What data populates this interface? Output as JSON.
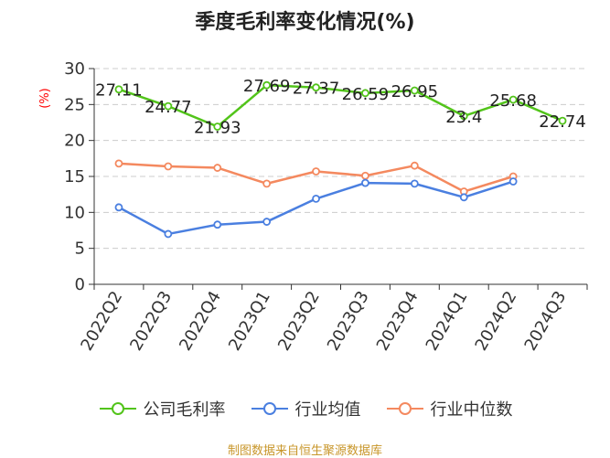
{
  "chart_data": {
    "type": "line",
    "title": "季度毛利率变化情况(%)",
    "ylabel": "(%)",
    "ylim": [
      0,
      30
    ],
    "yticks": [
      0,
      5,
      10,
      15,
      20,
      25,
      30
    ],
    "grid": true,
    "legend_position": "bottom",
    "categories": [
      "2022Q2",
      "2022Q3",
      "2022Q4",
      "2023Q1",
      "2023Q2",
      "2023Q3",
      "2023Q4",
      "2024Q1",
      "2024Q2",
      "2024Q3"
    ],
    "series": [
      {
        "name": "公司毛利率",
        "color": "#52c41a",
        "values": [
          27.11,
          24.77,
          21.93,
          27.69,
          27.37,
          26.59,
          26.95,
          23.4,
          25.68,
          22.74
        ],
        "labels": [
          "27.11",
          "24.77",
          "21.93",
          "27.69",
          "27.37",
          "26.59",
          "26.95",
          "23.4",
          "25.68",
          "22.74"
        ]
      },
      {
        "name": "行业均值",
        "color": "#4a7fe0",
        "values": [
          10.7,
          7.0,
          8.3,
          8.7,
          11.9,
          14.1,
          14.0,
          12.1,
          14.3,
          null
        ]
      },
      {
        "name": "行业中位数",
        "color": "#f4895f",
        "values": [
          16.8,
          16.4,
          16.2,
          14.0,
          15.7,
          15.1,
          16.5,
          12.9,
          15.0,
          null
        ]
      }
    ],
    "source": "制图数据来自恒生聚源数据库"
  }
}
